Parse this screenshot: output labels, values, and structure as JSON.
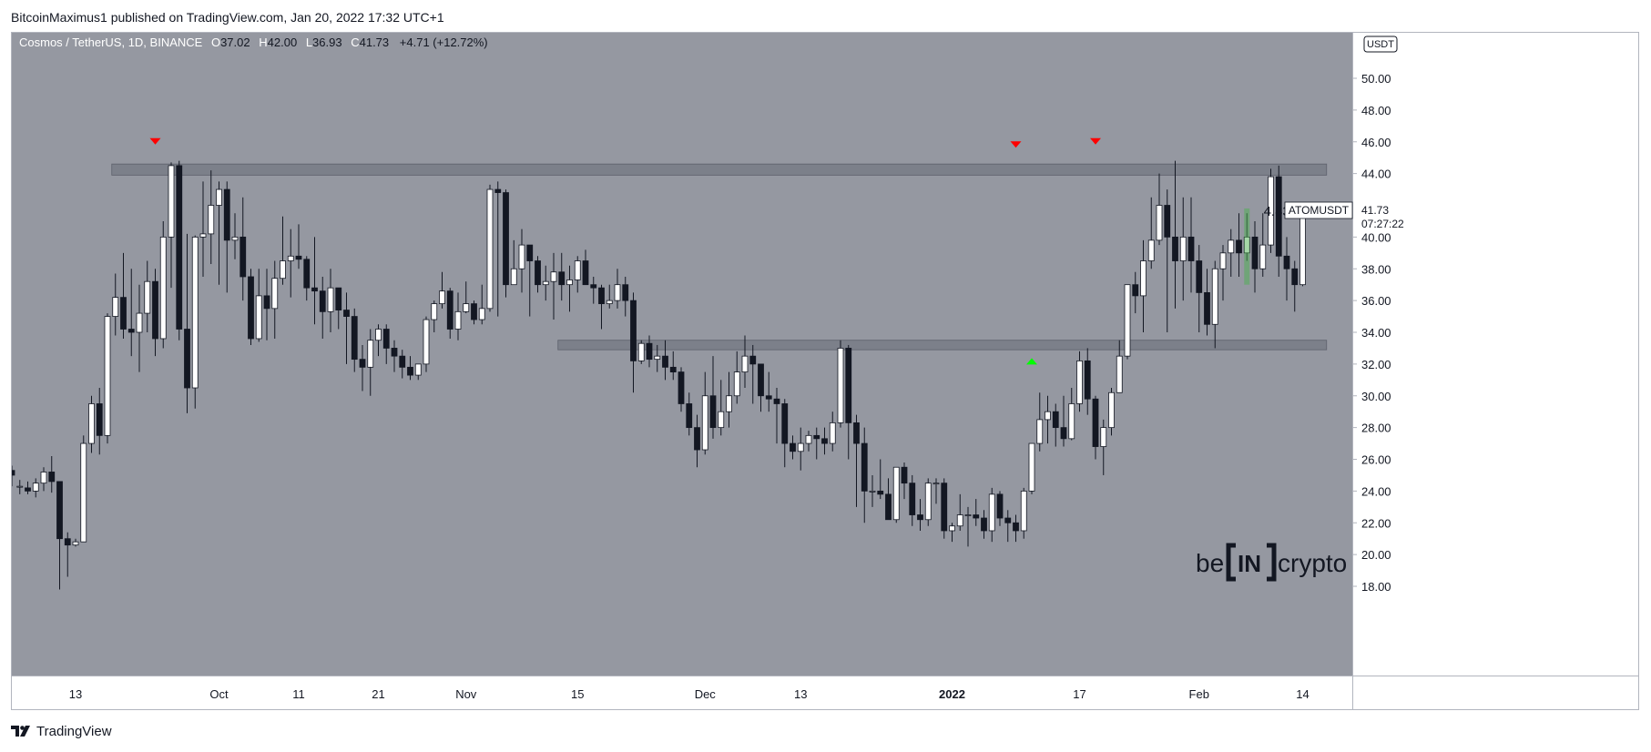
{
  "header": {
    "publisher_line": "BitcoinMaximus1 published on TradingView.com, Jan 20, 2022 17:32 UTC+1"
  },
  "footer": {
    "brand": "TradingView",
    "logo_icon": "tradingview-logo-icon"
  },
  "watermark": {
    "left": "be",
    "mid": "IN",
    "right": "crypto"
  },
  "legend": {
    "symbol": "Cosmos / TetherUS, 1D, BINANCE",
    "o_label": "O",
    "o": "37.02",
    "h_label": "H",
    "h": "42.00",
    "l_label": "L",
    "l": "36.93",
    "c_label": "C",
    "c": "41.73",
    "change": "+4.71 (+12.72%)"
  },
  "price_tag": {
    "symbol": "ATOMUSDT",
    "price": "41.73",
    "countdown": "07:27:22"
  },
  "currency_badge": "USDT",
  "measure": {
    "text": "4.83 (13.10%) 483"
  },
  "colors": {
    "background": "#9598a1",
    "candle_up": "#ffffff",
    "candle_down": "#131722",
    "wick": "#131722",
    "zone": "#787b86",
    "marker_down": "#ff0000",
    "marker_up": "#00ff00",
    "measure_bar": "#4caf50"
  },
  "chart_data": {
    "type": "candlestick",
    "title": "Cosmos / TetherUS, 1D, BINANCE",
    "y_ticks": [
      "18.00",
      "20.00",
      "22.00",
      "24.00",
      "26.00",
      "28.00",
      "30.00",
      "32.00",
      "34.00",
      "36.00",
      "38.00",
      "40.00",
      "42.00",
      "44.00",
      "46.00",
      "48.00",
      "50.00",
      "5"
    ],
    "ylim": [
      18,
      52
    ],
    "x_ticks": [
      {
        "label": "13",
        "i": 8
      },
      {
        "label": "Oct",
        "i": 26
      },
      {
        "label": "11",
        "i": 36
      },
      {
        "label": "21",
        "i": 46
      },
      {
        "label": "Nov",
        "i": 57
      },
      {
        "label": "15",
        "i": 71
      },
      {
        "label": "Dec",
        "i": 87
      },
      {
        "label": "13",
        "i": 99
      },
      {
        "label": "2022",
        "i": 118
      },
      {
        "label": "17",
        "i": 134
      },
      {
        "label": "Feb",
        "i": 149
      },
      {
        "label": "14",
        "i": 162
      }
    ],
    "x_count": 166,
    "zones": [
      {
        "name": "resistance",
        "from": 43.9,
        "to": 44.6,
        "i_start": 13,
        "i_end": 165
      },
      {
        "name": "support",
        "from": 32.9,
        "to": 33.5,
        "i_start": 69,
        "i_end": 165
      }
    ],
    "markers": [
      {
        "type": "down",
        "i": 18,
        "price": 46.0
      },
      {
        "type": "down",
        "i": 126,
        "price": 45.8
      },
      {
        "type": "down",
        "i": 136,
        "price": 46.0
      },
      {
        "type": "up",
        "i": 128,
        "price": 32.2
      }
    ],
    "measure_bar": {
      "i": 155,
      "from": 37.0,
      "to": 41.8
    },
    "candles": [
      [
        25.3,
        25.0,
        25.6,
        24.3
      ],
      [
        24.3,
        24.3,
        24.7,
        23.8
      ],
      [
        24.2,
        24.0,
        24.6,
        23.8
      ],
      [
        24.0,
        24.5,
        24.8,
        23.6
      ],
      [
        24.5,
        25.2,
        25.5,
        24.0
      ],
      [
        25.2,
        24.6,
        26.2,
        23.9
      ],
      [
        24.6,
        21.0,
        24.6,
        17.8
      ],
      [
        21.0,
        20.6,
        21.4,
        18.6
      ],
      [
        20.6,
        20.8,
        21.0,
        20.5
      ],
      [
        20.8,
        27.0,
        27.5,
        20.8
      ],
      [
        27.0,
        29.5,
        30.0,
        26.4
      ],
      [
        29.5,
        27.5,
        30.5,
        26.3
      ],
      [
        27.5,
        35.0,
        35.2,
        27.0
      ],
      [
        35.0,
        36.2,
        37.7,
        33.8
      ],
      [
        36.2,
        34.2,
        39.0,
        33.6
      ],
      [
        34.2,
        34.0,
        38.0,
        32.5
      ],
      [
        34.0,
        35.2,
        37.0,
        31.5
      ],
      [
        35.2,
        37.2,
        38.5,
        34.0
      ],
      [
        37.2,
        33.6,
        38.0,
        32.5
      ],
      [
        33.6,
        40.0,
        41.0,
        33.0
      ],
      [
        40.0,
        44.5,
        44.7,
        36.8
      ],
      [
        44.5,
        34.2,
        44.8,
        33.5
      ],
      [
        34.2,
        30.5,
        40.2,
        28.9
      ],
      [
        30.5,
        40.0,
        40.1,
        29.2
      ],
      [
        40.0,
        40.2,
        43.5,
        37.5
      ],
      [
        40.2,
        42.0,
        44.2,
        38.3
      ],
      [
        42.0,
        43.0,
        43.5,
        37.0
      ],
      [
        43.0,
        39.8,
        43.5,
        36.5
      ],
      [
        39.8,
        40.0,
        41.5,
        38.6
      ],
      [
        40.0,
        37.5,
        42.5,
        36.0
      ],
      [
        37.5,
        33.6,
        38.0,
        33.2
      ],
      [
        33.6,
        36.3,
        38.0,
        33.4
      ],
      [
        36.3,
        35.5,
        38.0,
        33.5
      ],
      [
        35.5,
        37.4,
        38.5,
        33.6
      ],
      [
        37.4,
        38.5,
        41.3,
        37.0
      ],
      [
        38.5,
        38.8,
        40.5,
        36.2
      ],
      [
        38.8,
        38.6,
        40.8,
        38.0
      ],
      [
        38.6,
        36.8,
        38.8,
        36.0
      ],
      [
        36.8,
        36.6,
        40.0,
        34.5
      ],
      [
        36.6,
        35.3,
        37.5,
        33.6
      ],
      [
        35.3,
        36.8,
        38.0,
        34.0
      ],
      [
        36.8,
        35.4,
        36.8,
        34.2
      ],
      [
        35.4,
        35.0,
        36.5,
        32.0
      ],
      [
        35.0,
        32.3,
        35.5,
        31.5
      ],
      [
        32.3,
        31.8,
        33.2,
        30.3
      ],
      [
        31.8,
        33.5,
        34.2,
        30.0
      ],
      [
        33.5,
        34.2,
        34.5,
        32.5
      ],
      [
        34.2,
        33.0,
        34.5,
        32.0
      ],
      [
        33.0,
        32.5,
        33.5,
        31.5
      ],
      [
        32.5,
        31.8,
        32.9,
        31.1
      ],
      [
        31.8,
        31.3,
        32.5,
        31.0
      ],
      [
        31.3,
        32.0,
        32.0,
        31.0
      ],
      [
        32.0,
        34.8,
        35.0,
        31.5
      ],
      [
        34.8,
        35.8,
        36.0,
        34.0
      ],
      [
        35.8,
        36.6,
        37.8,
        35.5
      ],
      [
        36.6,
        34.2,
        36.8,
        33.6
      ],
      [
        34.2,
        35.3,
        36.5,
        33.5
      ],
      [
        35.3,
        35.8,
        37.2,
        35.2
      ],
      [
        35.8,
        34.8,
        36.0,
        34.5
      ],
      [
        34.8,
        35.5,
        37.0,
        34.5
      ],
      [
        35.5,
        43.0,
        43.3,
        35.3
      ],
      [
        43.0,
        42.8,
        43.5,
        35.0
      ],
      [
        42.8,
        37.0,
        43.0,
        36.2
      ],
      [
        37.0,
        38.0,
        39.8,
        37.0
      ],
      [
        38.0,
        39.5,
        40.5,
        36.5
      ],
      [
        39.5,
        38.5,
        39.5,
        35.0
      ],
      [
        38.5,
        37.0,
        38.8,
        36.5
      ],
      [
        37.0,
        37.2,
        38.2,
        36.0
      ],
      [
        37.2,
        37.8,
        39.0,
        34.8
      ],
      [
        37.8,
        37.0,
        39.0,
        36.0
      ],
      [
        37.0,
        37.3,
        38.2,
        35.3
      ],
      [
        37.3,
        38.5,
        38.8,
        36.5
      ],
      [
        38.5,
        37.0,
        39.2,
        37.0
      ],
      [
        37.0,
        36.8,
        37.5,
        35.8
      ],
      [
        36.8,
        35.8,
        37.0,
        34.2
      ],
      [
        35.8,
        36.0,
        37.0,
        35.5
      ],
      [
        36.0,
        37.0,
        38.0,
        35.5
      ],
      [
        37.0,
        36.0,
        37.5,
        35.0
      ],
      [
        36.0,
        32.2,
        36.5,
        30.2
      ],
      [
        32.2,
        33.3,
        33.5,
        32.0
      ],
      [
        33.3,
        32.3,
        33.8,
        31.8
      ],
      [
        32.3,
        32.5,
        33.2,
        31.5
      ],
      [
        32.5,
        31.8,
        33.5,
        31.0
      ],
      [
        31.8,
        31.5,
        32.8,
        31.0
      ],
      [
        31.5,
        29.5,
        31.8,
        29.0
      ],
      [
        29.5,
        28.0,
        30.2,
        27.5
      ],
      [
        28.0,
        26.6,
        28.8,
        25.5
      ],
      [
        26.6,
        30.0,
        31.5,
        26.3
      ],
      [
        30.0,
        28.0,
        32.5,
        27.3
      ],
      [
        28.0,
        29.0,
        31.0,
        27.5
      ],
      [
        29.0,
        30.0,
        31.5,
        28.0
      ],
      [
        30.0,
        31.5,
        32.8,
        29.5
      ],
      [
        31.5,
        32.5,
        33.8,
        30.5
      ],
      [
        32.5,
        32.0,
        33.2,
        29.5
      ],
      [
        32.0,
        30.0,
        32.0,
        29.0
      ],
      [
        30.0,
        29.8,
        31.5,
        29.0
      ],
      [
        29.8,
        29.5,
        30.5,
        27.0
      ],
      [
        29.5,
        27.0,
        29.8,
        25.5
      ],
      [
        27.0,
        26.5,
        27.5,
        26.0
      ],
      [
        26.5,
        27.0,
        28.0,
        25.3
      ],
      [
        27.0,
        27.5,
        27.8,
        26.5
      ],
      [
        27.5,
        27.3,
        28.0,
        26.0
      ],
      [
        27.3,
        27.0,
        28.0,
        26.3
      ],
      [
        27.0,
        28.3,
        29.0,
        26.5
      ],
      [
        28.3,
        33.0,
        33.5,
        28.0
      ],
      [
        33.0,
        28.3,
        33.2,
        26.0
      ],
      [
        28.3,
        27.0,
        28.8,
        23.0
      ],
      [
        27.0,
        24.0,
        28.0,
        22.0
      ],
      [
        24.0,
        24.0,
        25.0,
        23.0
      ],
      [
        24.0,
        23.8,
        26.0,
        23.5
      ],
      [
        23.8,
        22.2,
        24.8,
        22.2
      ],
      [
        22.2,
        25.5,
        25.5,
        22.0
      ],
      [
        25.5,
        24.5,
        25.8,
        23.5
      ],
      [
        24.5,
        22.5,
        25.0,
        21.8
      ],
      [
        22.5,
        22.2,
        23.5,
        21.5
      ],
      [
        22.2,
        24.5,
        24.8,
        21.8
      ],
      [
        24.5,
        24.5,
        24.8,
        23.2
      ],
      [
        24.5,
        21.5,
        24.8,
        21.0
      ],
      [
        21.5,
        21.8,
        22.0,
        20.8
      ],
      [
        21.8,
        22.5,
        23.8,
        21.5
      ],
      [
        22.5,
        22.5,
        23.0,
        20.5
      ],
      [
        22.5,
        22.3,
        23.5,
        21.8
      ],
      [
        22.3,
        21.5,
        22.8,
        21.0
      ],
      [
        21.5,
        23.8,
        24.2,
        20.8
      ],
      [
        23.8,
        22.3,
        24.0,
        21.8
      ],
      [
        22.3,
        22.0,
        22.8,
        20.8
      ],
      [
        22.0,
        21.5,
        22.5,
        20.8
      ],
      [
        21.5,
        24.0,
        24.2,
        21.0
      ],
      [
        24.0,
        27.0,
        27.0,
        23.8
      ],
      [
        27.0,
        28.5,
        30.2,
        26.5
      ],
      [
        28.5,
        29.0,
        30.0,
        27.0
      ],
      [
        29.0,
        28.0,
        29.5,
        26.8
      ],
      [
        28.0,
        27.3,
        30.0,
        26.8
      ],
      [
        27.3,
        29.5,
        30.5,
        27.2
      ],
      [
        29.5,
        32.2,
        32.8,
        29.0
      ],
      [
        32.2,
        29.8,
        33.0,
        28.8
      ],
      [
        29.8,
        26.8,
        30.0,
        26.0
      ],
      [
        26.8,
        28.0,
        28.5,
        25.0
      ],
      [
        28.0,
        30.2,
        30.5,
        27.5
      ],
      [
        30.2,
        32.5,
        33.5,
        30.2
      ],
      [
        32.5,
        37.0,
        37.0,
        32.3
      ],
      [
        37.0,
        36.3,
        37.8,
        35.2
      ],
      [
        36.3,
        38.5,
        39.8,
        34.0
      ],
      [
        38.5,
        39.8,
        42.5,
        38.0
      ],
      [
        39.8,
        42.0,
        44.0,
        39.5
      ],
      [
        42.0,
        40.0,
        43.0,
        34.0
      ],
      [
        40.0,
        38.5,
        44.8,
        35.5
      ],
      [
        38.5,
        40.0,
        42.5,
        36.0
      ],
      [
        40.0,
        38.5,
        42.5,
        36.5
      ],
      [
        38.5,
        36.5,
        39.5,
        34.0
      ],
      [
        36.5,
        34.5,
        38.0,
        33.8
      ],
      [
        34.5,
        38.0,
        38.5,
        33.0
      ],
      [
        38.0,
        39.0,
        39.5,
        36.0
      ],
      [
        39.0,
        39.8,
        40.5,
        37.5
      ],
      [
        39.8,
        39.0,
        41.5,
        37.5
      ],
      [
        39.0,
        40.0,
        41.5,
        38.5
      ],
      [
        40.0,
        38.0,
        41.0,
        36.5
      ],
      [
        38.0,
        39.5,
        41.5,
        37.5
      ],
      [
        39.5,
        43.8,
        44.3,
        39.0
      ],
      [
        43.8,
        38.8,
        44.5,
        37.5
      ],
      [
        38.8,
        38.0,
        40.0,
        36.0
      ],
      [
        38.0,
        37.0,
        38.5,
        35.3
      ],
      [
        37.0,
        41.7,
        42.0,
        36.9
      ]
    ]
  }
}
